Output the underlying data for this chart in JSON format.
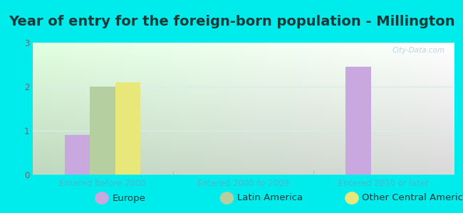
{
  "title": "Year of entry for the foreign-born population - Millington",
  "categories": [
    "Entered before 2000",
    "Entered 2000 to 2009",
    "Entered 2010 or later"
  ],
  "series": [
    {
      "label": "Europe",
      "color": "#c9a8df",
      "values": [
        0.9,
        0,
        2.45
      ]
    },
    {
      "label": "Latin America",
      "color": "#b5cfa0",
      "values": [
        2.0,
        0,
        0
      ]
    },
    {
      "label": "Other Central America",
      "color": "#e8e87a",
      "values": [
        2.1,
        0,
        0
      ]
    }
  ],
  "ylim": [
    0,
    3
  ],
  "yticks": [
    0,
    1,
    2,
    3
  ],
  "background_outer": "#00ecec",
  "background_plot_topleft": "#e0f0e8",
  "background_plot_bottomright": "#f8fff8",
  "bar_width": 0.18,
  "title_fontsize": 14,
  "tick_fontsize": 8.5,
  "legend_fontsize": 9.5,
  "xtick_color": "#4ab8c8",
  "ytick_color": "#666666",
  "watermark": "City-Data.com",
  "divider_color": "#88cccc",
  "grid_color": "#d8ede8"
}
